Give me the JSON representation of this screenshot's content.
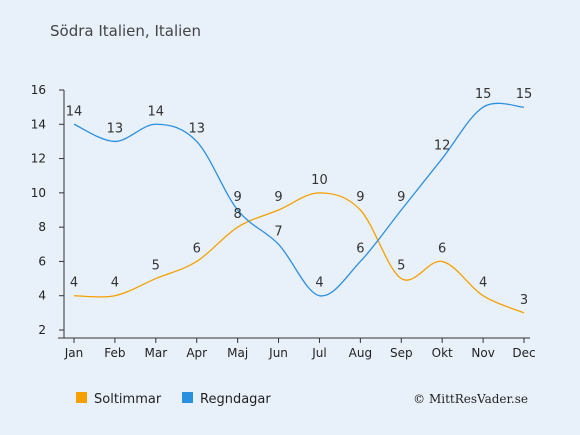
{
  "chart_data": {
    "type": "line",
    "title": "Södra Italien, Italien",
    "categories": [
      "Jan",
      "Feb",
      "Mar",
      "Apr",
      "Maj",
      "Jun",
      "Jul",
      "Aug",
      "Sep",
      "Okt",
      "Nov",
      "Dec"
    ],
    "ylim": [
      2,
      16
    ],
    "yticks": [
      2,
      4,
      6,
      8,
      10,
      12,
      14,
      16
    ],
    "grid": false,
    "legend_position": "bottom-left",
    "series": [
      {
        "name": "Soltimmar",
        "color": "#f5a000",
        "values": [
          4,
          4,
          5,
          6,
          8,
          9,
          10,
          9,
          5,
          6,
          4,
          3
        ]
      },
      {
        "name": "Regndagar",
        "color": "#2b8fe0",
        "values": [
          14,
          13,
          14,
          13,
          9,
          7,
          4,
          6,
          9,
          12,
          15,
          15
        ]
      }
    ],
    "credit": "© MittResVader.se"
  }
}
